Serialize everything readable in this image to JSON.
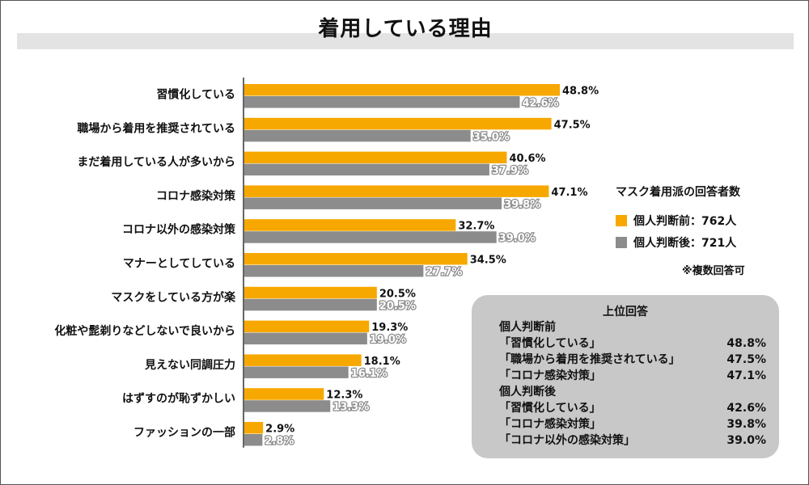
{
  "chart_data": {
    "type": "bar",
    "orientation": "horizontal",
    "title": "着用している理由",
    "categories": [
      "習慣化している",
      "職場から着用を推奨されている",
      "まだ着用している人が多いから",
      "コロナ感染対策",
      "コロナ以外の感染対策",
      "マナーとしてしている",
      "マスクをしている方が楽",
      "化粧や髭剃りなどしないで良いから",
      "見えない同調圧力",
      "はずすのが恥ずかしい",
      "ファッションの一部"
    ],
    "series": [
      {
        "name": "個人判断前：762人",
        "color": "#f7a800",
        "values": [
          48.8,
          47.5,
          40.6,
          47.1,
          32.7,
          34.5,
          20.5,
          19.3,
          18.1,
          12.3,
          2.9
        ],
        "labels": [
          "48.8%",
          "47.5%",
          "40.6%",
          "47.1%",
          "32.7%",
          "34.5%",
          "20.5%",
          "19.3%",
          "18.1%",
          "12.3%",
          "2.9%"
        ]
      },
      {
        "name": "個人判断後：721人",
        "color": "#8c8c8c",
        "values": [
          42.6,
          35.0,
          37.9,
          39.8,
          39.0,
          27.7,
          20.5,
          19.0,
          16.1,
          13.3,
          2.8
        ],
        "labels": [
          "42.6%",
          "35.0%",
          "37.9%",
          "39.8%",
          "39.0%",
          "27.7%",
          "20.5%",
          "19.0%",
          "16.1%",
          "13.3%",
          "2.8%"
        ]
      }
    ],
    "xlim": [
      0,
      50
    ],
    "grid": false,
    "legend_title": "マスク着用派の回答者数",
    "legend_note": "※複数回答可"
  },
  "summary": {
    "title": "上位回答",
    "groups": [
      {
        "label": "個人判断前",
        "rows": [
          {
            "item": "「習慣化している」",
            "value": "48.8%"
          },
          {
            "item": "「職場から着用を推奨されている」",
            "value": "47.5%"
          },
          {
            "item": "「コロナ感染対策」",
            "value": "47.1%"
          }
        ]
      },
      {
        "label": "個人判断後",
        "rows": [
          {
            "item": "「習慣化している」",
            "value": "42.6%"
          },
          {
            "item": "「コロナ感染対策」",
            "value": "39.8%"
          },
          {
            "item": "「コロナ以外の感染対策」",
            "value": "39.0%"
          }
        ]
      }
    ]
  }
}
